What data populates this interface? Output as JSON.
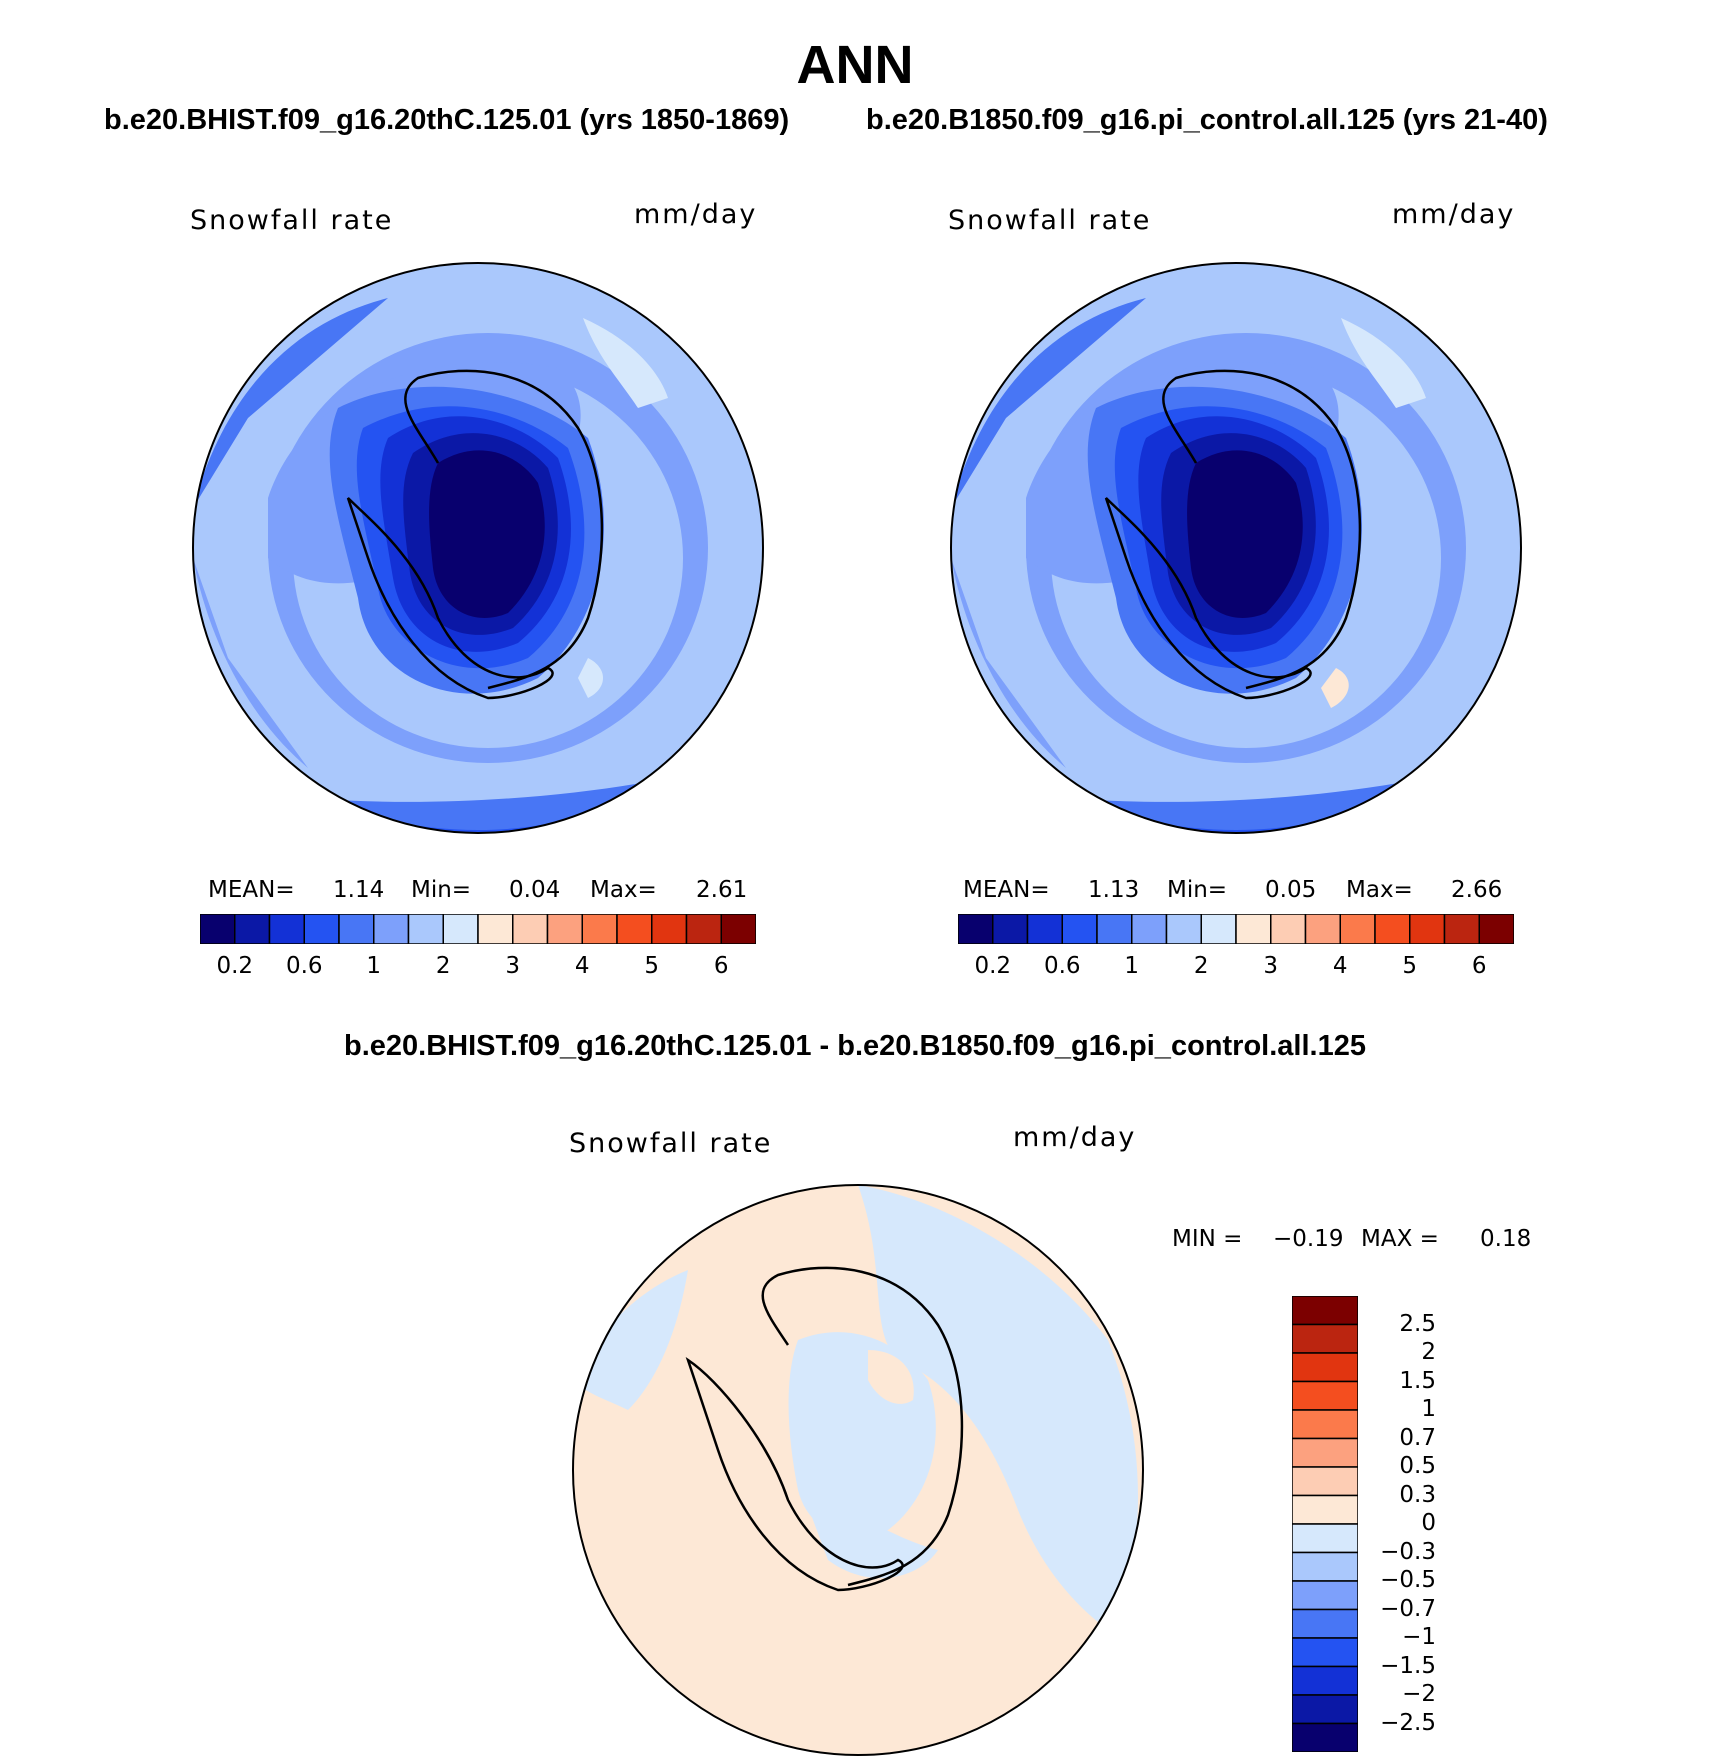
{
  "header": {
    "title": "ANN",
    "case1_label": "b.e20.BHIST.f09_g16.20thC.125.01 (yrs 1850-1869)",
    "case2_label": "b.e20.B1850.f09_g16.pi_control.all.125 (yrs 21-40)",
    "diff_label": "b.e20.BHIST.f09_g16.20thC.125.01 - b.e20.B1850.f09_g16.pi_control.all.125"
  },
  "panels": {
    "case1": {
      "variable": "Snowfall rate",
      "units": "mm/day",
      "mean_label": "MEAN=",
      "mean": "1.14",
      "min_label": "Min=",
      "min": "0.04",
      "max_label": "Max=",
      "max": "2.61"
    },
    "case2": {
      "variable": "Snowfall rate",
      "units": "mm/day",
      "mean_label": "MEAN=",
      "mean": "1.13",
      "min_label": "Min=",
      "min": "0.05",
      "max_label": "Max=",
      "max": "2.66"
    },
    "diff": {
      "variable": "Snowfall rate",
      "units": "mm/day",
      "min_label": "MIN =",
      "min": "−0.19",
      "max_label": "MAX =",
      "max": "0.18"
    }
  },
  "colorbar_abs": {
    "colors": [
      "#08006e",
      "#0b18a6",
      "#1331d6",
      "#2453f2",
      "#4876f5",
      "#7da0fb",
      "#aac8fc",
      "#d6e8fc",
      "#fde8d6",
      "#fdcdb4",
      "#fca17f",
      "#fb7a4b",
      "#f44e1f",
      "#e13510",
      "#bb2510",
      "#7c0000"
    ],
    "tick_labels": [
      "0.2",
      "0.6",
      "1",
      "2",
      "3",
      "4",
      "5",
      "6"
    ]
  },
  "colorbar_diff": {
    "colors_top_to_bottom": [
      "#7c0000",
      "#bb2510",
      "#e13510",
      "#f44e1f",
      "#fb7a4b",
      "#fca17f",
      "#fdcdb4",
      "#fde8d6",
      "#d6e8fc",
      "#aac8fc",
      "#7da0fb",
      "#4876f5",
      "#2453f2",
      "#1331d6",
      "#0b18a6",
      "#08006e"
    ],
    "tick_labels": [
      "2.5",
      "2",
      "1.5",
      "1",
      "0.7",
      "0.5",
      "0.3",
      "0",
      "−0.3",
      "−0.5",
      "−0.7",
      "−1",
      "−1.5",
      "−2",
      "−2.5"
    ]
  }
}
